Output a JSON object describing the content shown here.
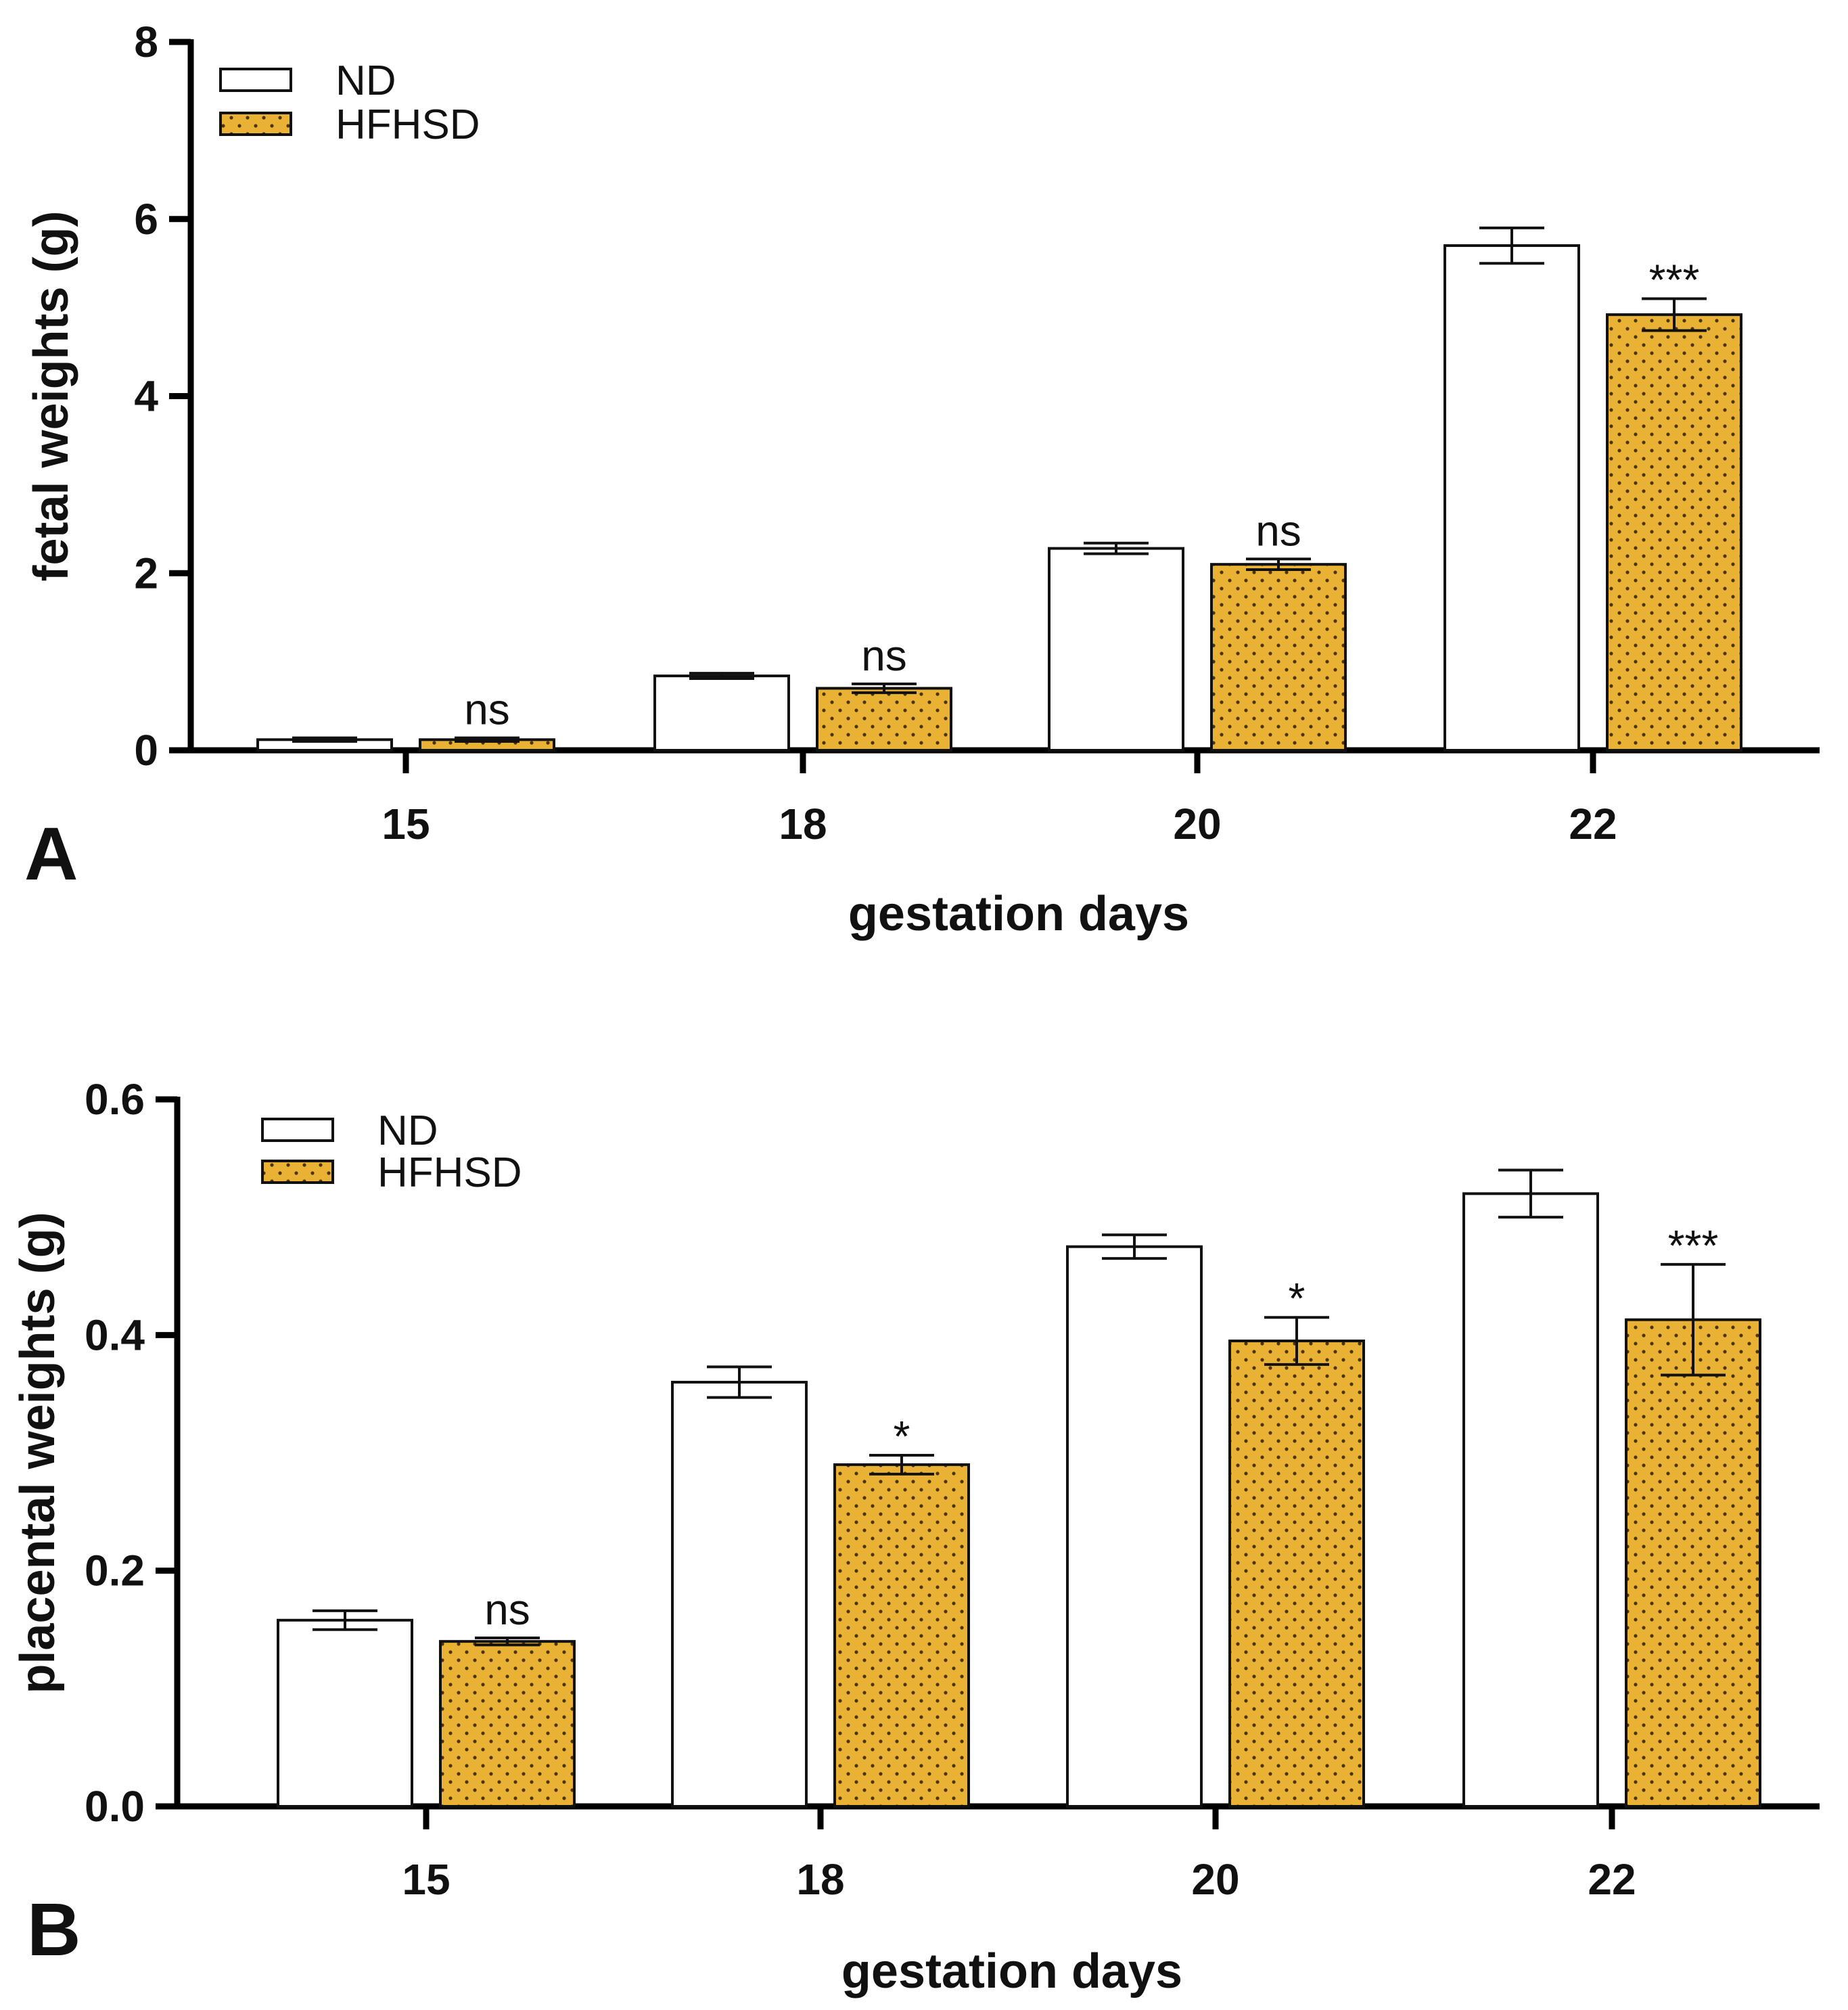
{
  "colors": {
    "nd_fill": "#ffffff",
    "hfhsd_fill": "#eab234",
    "hfhsd_dot": "#4a3510",
    "axis": "#000000"
  },
  "chart_data": [
    {
      "panel": "A",
      "type": "bar",
      "xlabel": "gestation days",
      "ylabel": "fetal weights (g)",
      "ylim": [
        0,
        8
      ],
      "yticks": [
        "0",
        "2",
        "4",
        "6",
        "8"
      ],
      "ytick_values": [
        0,
        2,
        4,
        6,
        8
      ],
      "categories": [
        "15",
        "18",
        "20",
        "22"
      ],
      "legend": {
        "placement": "top-left",
        "entries": [
          "ND",
          "HFHSD"
        ]
      },
      "series": [
        {
          "name": "ND",
          "values": [
            0.12,
            0.84,
            2.28,
            5.7
          ],
          "errors": [
            0.02,
            0.03,
            0.06,
            0.2
          ]
        },
        {
          "name": "HFHSD",
          "values": [
            0.12,
            0.7,
            2.1,
            4.92
          ],
          "errors": [
            0.02,
            0.05,
            0.06,
            0.18
          ]
        }
      ],
      "annotations": [
        "ns",
        "ns",
        "ns",
        "***"
      ]
    },
    {
      "panel": "B",
      "type": "bar",
      "xlabel": "gestation days",
      "ylabel": "placental weights (g)",
      "ylim": [
        0,
        0.6
      ],
      "yticks": [
        "0.0",
        "0.2",
        "0.4",
        "0.6"
      ],
      "ytick_values": [
        0,
        0.2,
        0.4,
        0.6
      ],
      "categories": [
        "15",
        "18",
        "20",
        "22"
      ],
      "legend": {
        "placement": "top-left",
        "entries": [
          "ND",
          "HFHSD"
        ]
      },
      "series": [
        {
          "name": "ND",
          "values": [
            0.158,
            0.36,
            0.475,
            0.52
          ],
          "errors": [
            0.008,
            0.013,
            0.01,
            0.02
          ]
        },
        {
          "name": "HFHSD",
          "values": [
            0.14,
            0.29,
            0.395,
            0.413
          ],
          "errors": [
            0.003,
            0.008,
            0.02,
            0.047
          ]
        }
      ],
      "annotations": [
        "ns",
        "*",
        "*",
        "***"
      ]
    }
  ]
}
